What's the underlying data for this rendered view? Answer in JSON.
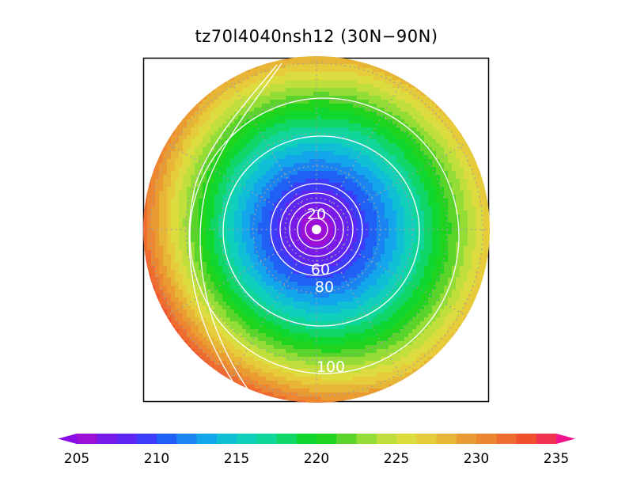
{
  "title": "tz70l4040nsh12 (30N−90N)",
  "map": {
    "projection": "north-polar-stereographic",
    "latitude_range": [
      30,
      90
    ],
    "shaded_field_range": [
      205,
      235
    ],
    "pole_value": 205,
    "edge_value": 230,
    "contour_labels": [
      {
        "text": "20",
        "value": 20
      },
      {
        "text": "60",
        "value": 60
      },
      {
        "text": "80",
        "value": 80
      },
      {
        "text": "100",
        "value": 100
      }
    ],
    "contour_levels": [
      20,
      40,
      60,
      80,
      100,
      120
    ]
  },
  "colorbar": {
    "min": 205,
    "max": 235,
    "step": 1.25,
    "tick_labels": [
      "205",
      "210",
      "215",
      "220",
      "225",
      "230",
      "235"
    ],
    "colors": [
      "#9b10d4",
      "#7a1ae8",
      "#5f26f2",
      "#3c3cfa",
      "#2060f5",
      "#1a85f0",
      "#14a6ea",
      "#10bfd6",
      "#10cfbb",
      "#10d69a",
      "#10d668",
      "#10d630",
      "#1ed41e",
      "#5ad42a",
      "#94dc36",
      "#c0de3c",
      "#dcdc3e",
      "#e6cc3a",
      "#e8b636",
      "#ea9c32",
      "#ec8630",
      "#ee6c30",
      "#f0502e",
      "#f03450"
    ],
    "end_low": "#8c0ce6",
    "end_high": "#f0148c"
  }
}
